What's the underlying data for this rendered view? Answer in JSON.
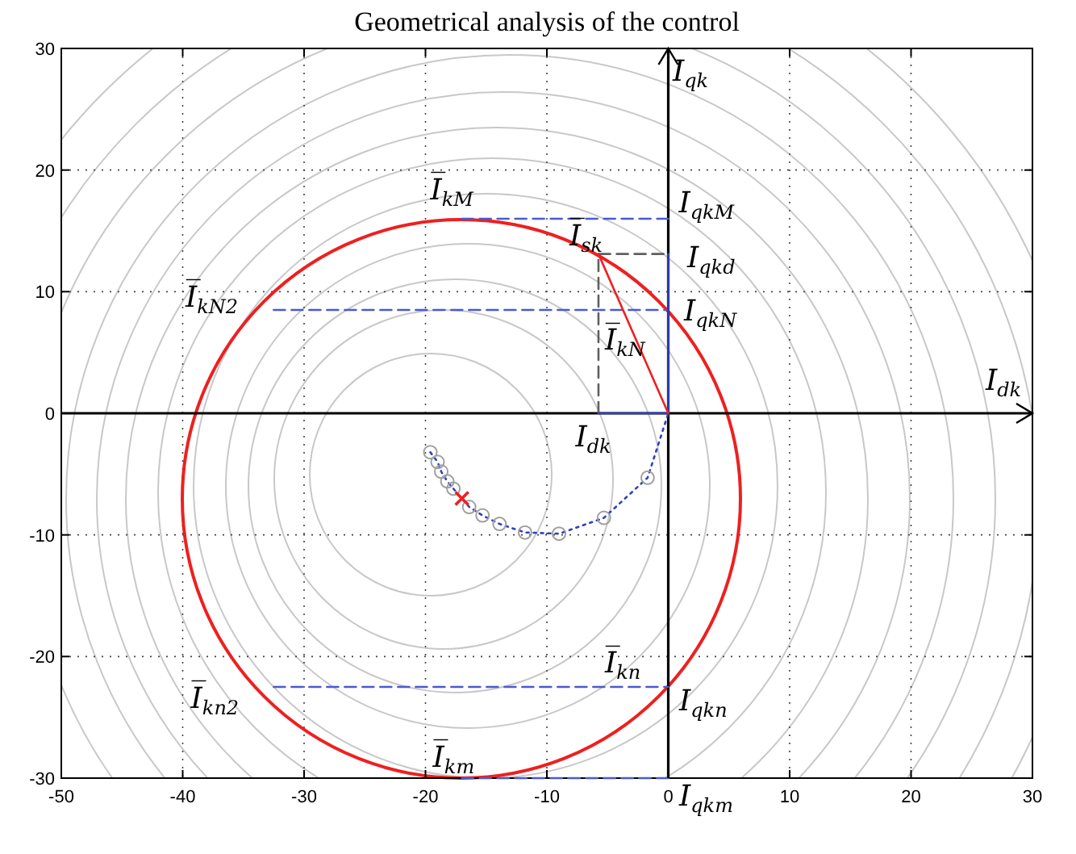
{
  "chart_data": {
    "type": "line",
    "title": "Geometrical analysis of the control",
    "xlim": [
      -50,
      30
    ],
    "xticks": [
      -50,
      -40,
      -30,
      -20,
      -10,
      0,
      10,
      20,
      30
    ],
    "ylim": [
      -30,
      30
    ],
    "yticks": [
      -30,
      -20,
      -10,
      0,
      10,
      20,
      30
    ],
    "grid": true,
    "series": [
      {
        "color": "#3040c0",
        "line_style": "dotted",
        "x": [
          -19.6,
          -19,
          -18.7,
          -18.2,
          -17.7,
          -17,
          -16.4,
          -15.3,
          -13.9,
          -11.8,
          -9,
          -5.3,
          -1.7,
          0
        ],
        "values": [
          -3.2,
          -4,
          -4.8,
          -5.6,
          -6.2,
          -7,
          -7.7,
          -8.4,
          -9.1,
          -9.8,
          -9.9,
          -8.6,
          -5.3,
          0
        ]
      },
      {
        "type": "scatter",
        "color": "#a0a0a0",
        "marker": "circle",
        "x": [
          -19.6,
          -19,
          -18.7,
          -18.2,
          -17.7,
          -16.4,
          -15.3,
          -13.9,
          -11.8,
          -9,
          -5.3,
          -1.7
        ],
        "values": [
          -3.2,
          -4,
          -4.8,
          -5.6,
          -6.2,
          -7.7,
          -8.4,
          -9.1,
          -9.8,
          -9.9,
          -8.6,
          -5.3
        ]
      },
      {
        "type": "scatter",
        "color": "#ee2020",
        "marker": "cross",
        "x": [
          -17
        ],
        "values": [
          -7
        ]
      },
      {
        "color": "#4a5ad0",
        "line_style": "dashed",
        "x": [
          -17,
          0
        ],
        "values": [
          16,
          16
        ]
      },
      {
        "color": "#4a5ad0",
        "line_style": "dashed",
        "x": [
          -32.5,
          0
        ],
        "values": [
          8.5,
          8.5
        ]
      },
      {
        "color": "#4a5ad0",
        "line_style": "dashed",
        "x": [
          -32.5,
          0
        ],
        "values": [
          -22.5,
          -22.5
        ]
      },
      {
        "color": "#4a5ad0",
        "line_style": "dashed",
        "x": [
          -17,
          0
        ],
        "values": [
          -30,
          -30
        ]
      },
      {
        "color": "#606060",
        "line_style": "dashed",
        "x": [
          -5.75,
          -5.75,
          0
        ],
        "values": [
          0,
          13.1,
          13.1
        ]
      },
      {
        "color": "#3040c0",
        "x": [
          0,
          0
        ],
        "values": [
          0,
          13.1
        ]
      },
      {
        "color": "#3040c0",
        "x": [
          0,
          -5.75
        ],
        "values": [
          0,
          0
        ]
      },
      {
        "color": "#ee2020",
        "x": [
          0,
          -5.75
        ],
        "values": [
          0,
          13.1
        ]
      }
    ],
    "annotations": [
      "I̅$_{kM}$",
      "I̅$_{kN2}$",
      "I$_{qkM}$",
      "I̅$_{sk}$",
      "I$_{qkd}$",
      "I$_{qkN}$",
      "I̅$_{kN}$",
      "I$_{qk}$",
      "I$_{dk}$",
      "I$_{dk}$",
      "I̅$_{kn2}$",
      "I̅$_{km}$",
      "I̅$_{kn}$",
      "I$_{qkn}$",
      "I$_{qkm}$"
    ]
  }
}
